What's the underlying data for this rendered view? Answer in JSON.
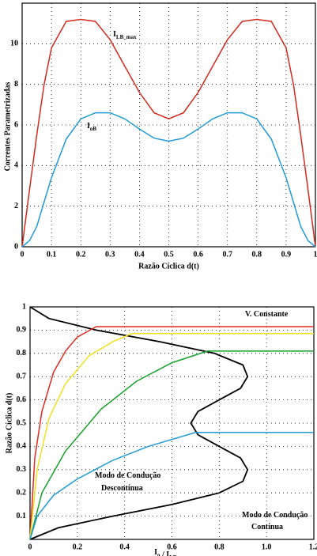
{
  "chart_data": [
    {
      "type": "line",
      "xlabel": "Razão Cíclica d(t)",
      "ylabel": "Correntes Parametrizadas",
      "x": [
        0,
        0.025,
        0.05,
        0.075,
        0.1,
        0.15,
        0.2,
        0.25,
        0.3,
        0.35,
        0.4,
        0.45,
        0.5,
        0.55,
        0.6,
        0.65,
        0.7,
        0.75,
        0.8,
        0.85,
        0.9,
        0.925,
        0.95,
        0.975,
        1
      ],
      "xlim": [
        0,
        1
      ],
      "xticks": [
        0,
        0.1,
        0.2,
        0.3,
        0.4,
        0.5,
        0.6,
        0.7,
        0.8,
        0.9,
        1
      ],
      "ylim": [
        0,
        12
      ],
      "yticks": [
        0,
        2,
        4,
        6,
        8,
        10
      ],
      "grid": true,
      "series": [
        {
          "color": "#d42a1e",
          "values": [
            0,
            2.8,
            5.5,
            8.0,
            9.8,
            11.1,
            11.2,
            11.1,
            10.2,
            8.9,
            7.6,
            6.6,
            6.3,
            6.6,
            7.6,
            8.9,
            10.2,
            11.1,
            11.2,
            11.1,
            9.8,
            8.0,
            5.5,
            2.8,
            0
          ]
        },
        {
          "color": "#1f9bd7",
          "values": [
            0,
            0.3,
            1.0,
            2.2,
            3.4,
            5.3,
            6.3,
            6.6,
            6.6,
            6.3,
            5.8,
            5.35,
            5.2,
            5.35,
            5.8,
            6.3,
            6.6,
            6.6,
            6.3,
            5.3,
            3.4,
            2.2,
            1.0,
            0.3,
            0
          ]
        }
      ],
      "annotations": [
        {
          "text": "I",
          "sub": "LB_max"
        },
        {
          "text": "I",
          "sub": "oB"
        }
      ]
    },
    {
      "type": "line",
      "xlabel": [
        {
          "text": "I",
          "sub": "o"
        },
        {
          "text": " / I",
          "sub": "LB_max"
        }
      ],
      "ylabel": "Razão Cíclica d(t)",
      "xlim": [
        0,
        1.2
      ],
      "xticks": [
        0,
        0.2,
        0.4,
        0.6,
        0.8,
        {
          "value": 1,
          "label": "1.0"
        },
        1.2
      ],
      "ylim": [
        0,
        1
      ],
      "yticks": [
        0.1,
        0.2,
        0.3,
        0.4,
        0.5,
        0.6,
        0.7,
        0.8,
        0.9,
        1
      ],
      "grid": true,
      "series": [
        {
          "color": "#000000",
          "x": [
            0,
            0.12,
            0.35,
            0.6,
            0.8,
            0.9,
            0.92,
            0.89,
            0.8,
            0.71,
            0.68,
            0.71,
            0.8,
            0.89,
            0.92,
            0.9,
            0.78,
            0.55,
            0.28,
            0.08,
            0
          ],
          "values": [
            0,
            0.05,
            0.1,
            0.15,
            0.2,
            0.25,
            0.3,
            0.35,
            0.4,
            0.45,
            0.5,
            0.55,
            0.6,
            0.65,
            0.7,
            0.75,
            0.8,
            0.85,
            0.9,
            0.95,
            1
          ]
        },
        {
          "color": "#e02a20",
          "x": [
            0,
            0.02,
            0.05,
            0.1,
            0.15,
            0.2,
            0.28,
            1.2
          ],
          "values": [
            0,
            0.35,
            0.55,
            0.72,
            0.81,
            0.87,
            0.915,
            0.915
          ]
        },
        {
          "color": "#f2e020",
          "x": [
            0,
            0.03,
            0.08,
            0.15,
            0.25,
            0.35,
            0.43,
            1.2
          ],
          "values": [
            0,
            0.3,
            0.52,
            0.67,
            0.79,
            0.85,
            0.885,
            0.885
          ]
        },
        {
          "color": "#17a02a",
          "x": [
            0,
            0.05,
            0.15,
            0.3,
            0.45,
            0.6,
            0.75,
            1.2
          ],
          "values": [
            0,
            0.2,
            0.38,
            0.56,
            0.68,
            0.76,
            0.81,
            0.81
          ]
        },
        {
          "color": "#1f9bd7",
          "x": [
            0,
            0.03,
            0.1,
            0.2,
            0.35,
            0.5,
            0.7,
            1.2
          ],
          "values": [
            0,
            0.1,
            0.19,
            0.26,
            0.34,
            0.4,
            0.46,
            0.46
          ]
        }
      ],
      "annotations": [
        {
          "text": "V. Constante"
        },
        {
          "text": "Modo de Condução"
        },
        {
          "text": "Descontínua"
        },
        {
          "text": "Modo de Condução"
        },
        {
          "text": "Contínua"
        }
      ]
    }
  ]
}
